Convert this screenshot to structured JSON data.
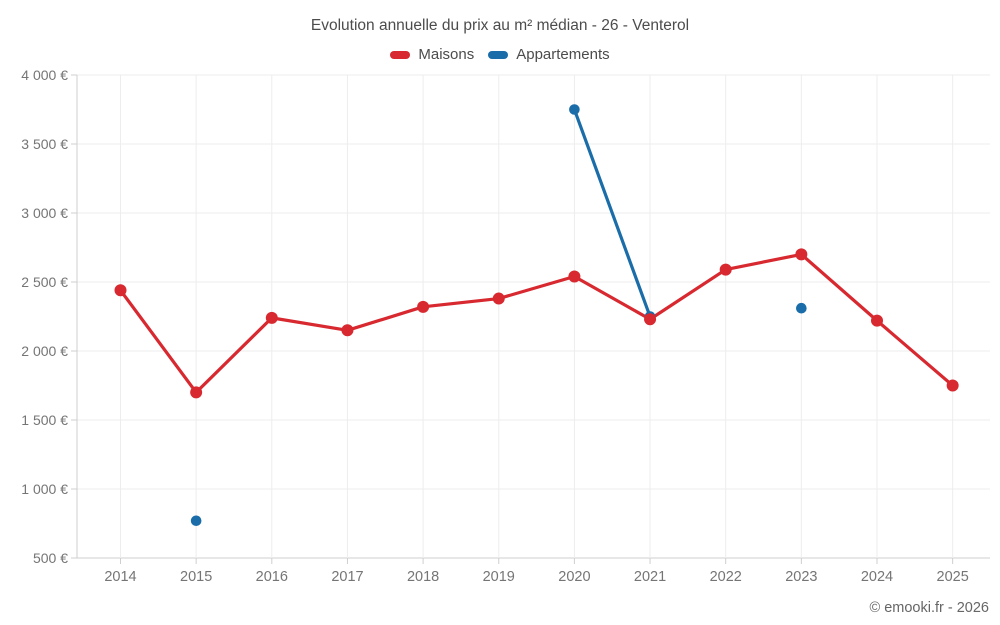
{
  "page": {
    "title": "Evolution annuelle du prix au m² médian - 26 - Venterol",
    "footer": "© emooki.fr - 2026"
  },
  "chart_data": {
    "type": "line",
    "title": "Evolution annuelle du prix au m² médian - 26 - Venterol",
    "xlabel": "",
    "ylabel": "",
    "categories": [
      "2014",
      "2015",
      "2016",
      "2017",
      "2018",
      "2019",
      "2020",
      "2021",
      "2022",
      "2023",
      "2024",
      "2025"
    ],
    "series": [
      {
        "name": "Maisons",
        "color": "#d7292f",
        "values": [
          2440,
          1700,
          2240,
          2150,
          2320,
          2380,
          2540,
          2230,
          2590,
          2700,
          2220,
          1750
        ]
      },
      {
        "name": "Appartements",
        "color": "#1a6da8",
        "values": [
          null,
          770,
          null,
          null,
          null,
          null,
          3750,
          2250,
          null,
          2310,
          null,
          null
        ]
      }
    ],
    "ylim": [
      500,
      4000
    ],
    "ytick_values": [
      500,
      1000,
      1500,
      2000,
      2500,
      3000,
      3500,
      4000
    ],
    "ytick_labels": [
      "500 €",
      "1 000 €",
      "1 500 €",
      "2 000 €",
      "2 500 €",
      "3 000 €",
      "3 500 €",
      "4 000 €"
    ],
    "grid": true,
    "legend_position": "top",
    "attribution": "© emooki.fr - 2026",
    "colors": {
      "gridline": "#ededed",
      "axis": "#cfcfcf",
      "tick_label": "#757575",
      "title_text": "#4c4c4c",
      "footer_text": "#666666"
    }
  }
}
